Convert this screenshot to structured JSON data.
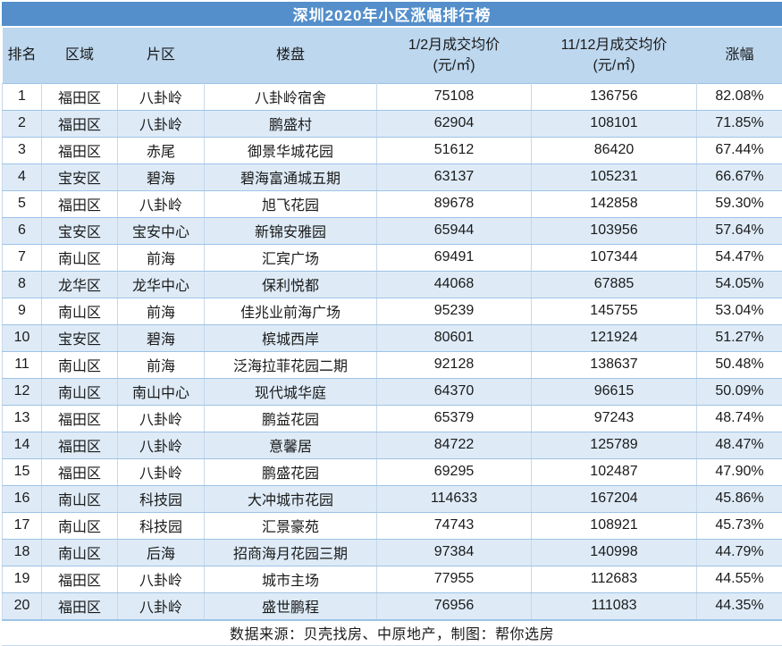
{
  "chart_data": {
    "type": "table",
    "title": "深圳2020年小区涨幅排行榜",
    "columns": [
      {
        "key": "rank",
        "label": "排名",
        "unit": ""
      },
      {
        "key": "region",
        "label": "区域",
        "unit": ""
      },
      {
        "key": "district",
        "label": "片区",
        "unit": ""
      },
      {
        "key": "estate",
        "label": "楼盘",
        "unit": ""
      },
      {
        "key": "price-jan-feb",
        "label": "1/2月成交均价",
        "unit": "(元/㎡)"
      },
      {
        "key": "price-nov-dec",
        "label": "11/12月成交均价",
        "unit": "(元/㎡)"
      },
      {
        "key": "change",
        "label": "涨幅",
        "unit": ""
      }
    ],
    "rows": [
      [
        "1",
        "福田区",
        "八卦岭",
        "八卦岭宿舍",
        "75108",
        "136756",
        "82.08%"
      ],
      [
        "2",
        "福田区",
        "八卦岭",
        "鹏盛村",
        "62904",
        "108101",
        "71.85%"
      ],
      [
        "3",
        "福田区",
        "赤尾",
        "御景华城花园",
        "51612",
        "86420",
        "67.44%"
      ],
      [
        "4",
        "宝安区",
        "碧海",
        "碧海富通城五期",
        "63137",
        "105231",
        "66.67%"
      ],
      [
        "5",
        "福田区",
        "八卦岭",
        "旭飞花园",
        "89678",
        "142858",
        "59.30%"
      ],
      [
        "6",
        "宝安区",
        "宝安中心",
        "新锦安雅园",
        "65944",
        "103956",
        "57.64%"
      ],
      [
        "7",
        "南山区",
        "前海",
        "汇宾广场",
        "69491",
        "107344",
        "54.47%"
      ],
      [
        "8",
        "龙华区",
        "龙华中心",
        "保利悦都",
        "44068",
        "67885",
        "54.05%"
      ],
      [
        "9",
        "南山区",
        "前海",
        "佳兆业前海广场",
        "95239",
        "145755",
        "53.04%"
      ],
      [
        "10",
        "宝安区",
        "碧海",
        "槟城西岸",
        "80601",
        "121924",
        "51.27%"
      ],
      [
        "11",
        "南山区",
        "前海",
        "泛海拉菲花园二期",
        "92128",
        "138637",
        "50.48%"
      ],
      [
        "12",
        "南山区",
        "南山中心",
        "现代城华庭",
        "64370",
        "96615",
        "50.09%"
      ],
      [
        "13",
        "福田区",
        "八卦岭",
        "鹏益花园",
        "65379",
        "97243",
        "48.74%"
      ],
      [
        "14",
        "福田区",
        "八卦岭",
        "意馨居",
        "84722",
        "125789",
        "48.47%"
      ],
      [
        "15",
        "福田区",
        "八卦岭",
        "鹏盛花园",
        "69295",
        "102487",
        "47.90%"
      ],
      [
        "16",
        "南山区",
        "科技园",
        "大冲城市花园",
        "114633",
        "167204",
        "45.86%"
      ],
      [
        "17",
        "南山区",
        "科技园",
        "汇景豪苑",
        "74743",
        "108921",
        "45.73%"
      ],
      [
        "18",
        "南山区",
        "后海",
        "招商海月花园三期",
        "97384",
        "140998",
        "44.79%"
      ],
      [
        "19",
        "福田区",
        "八卦岭",
        "城市主场",
        "77955",
        "112683",
        "44.55%"
      ],
      [
        "20",
        "福田区",
        "八卦岭",
        "盛世鹏程",
        "76956",
        "111083",
        "44.35%"
      ]
    ],
    "footer": "数据来源：贝壳找房、中原地产，制图：帮你选房"
  },
  "colors": {
    "title_bg": "#548FCB",
    "title_text": "#FFFFFF",
    "header_bg": "#BDD7EE",
    "stripe_bg": "#DEEBF7",
    "grid_horizontal": "#9DC3E6",
    "grid_vertical": "#C6D8EA",
    "text": "#1A1A1A"
  }
}
